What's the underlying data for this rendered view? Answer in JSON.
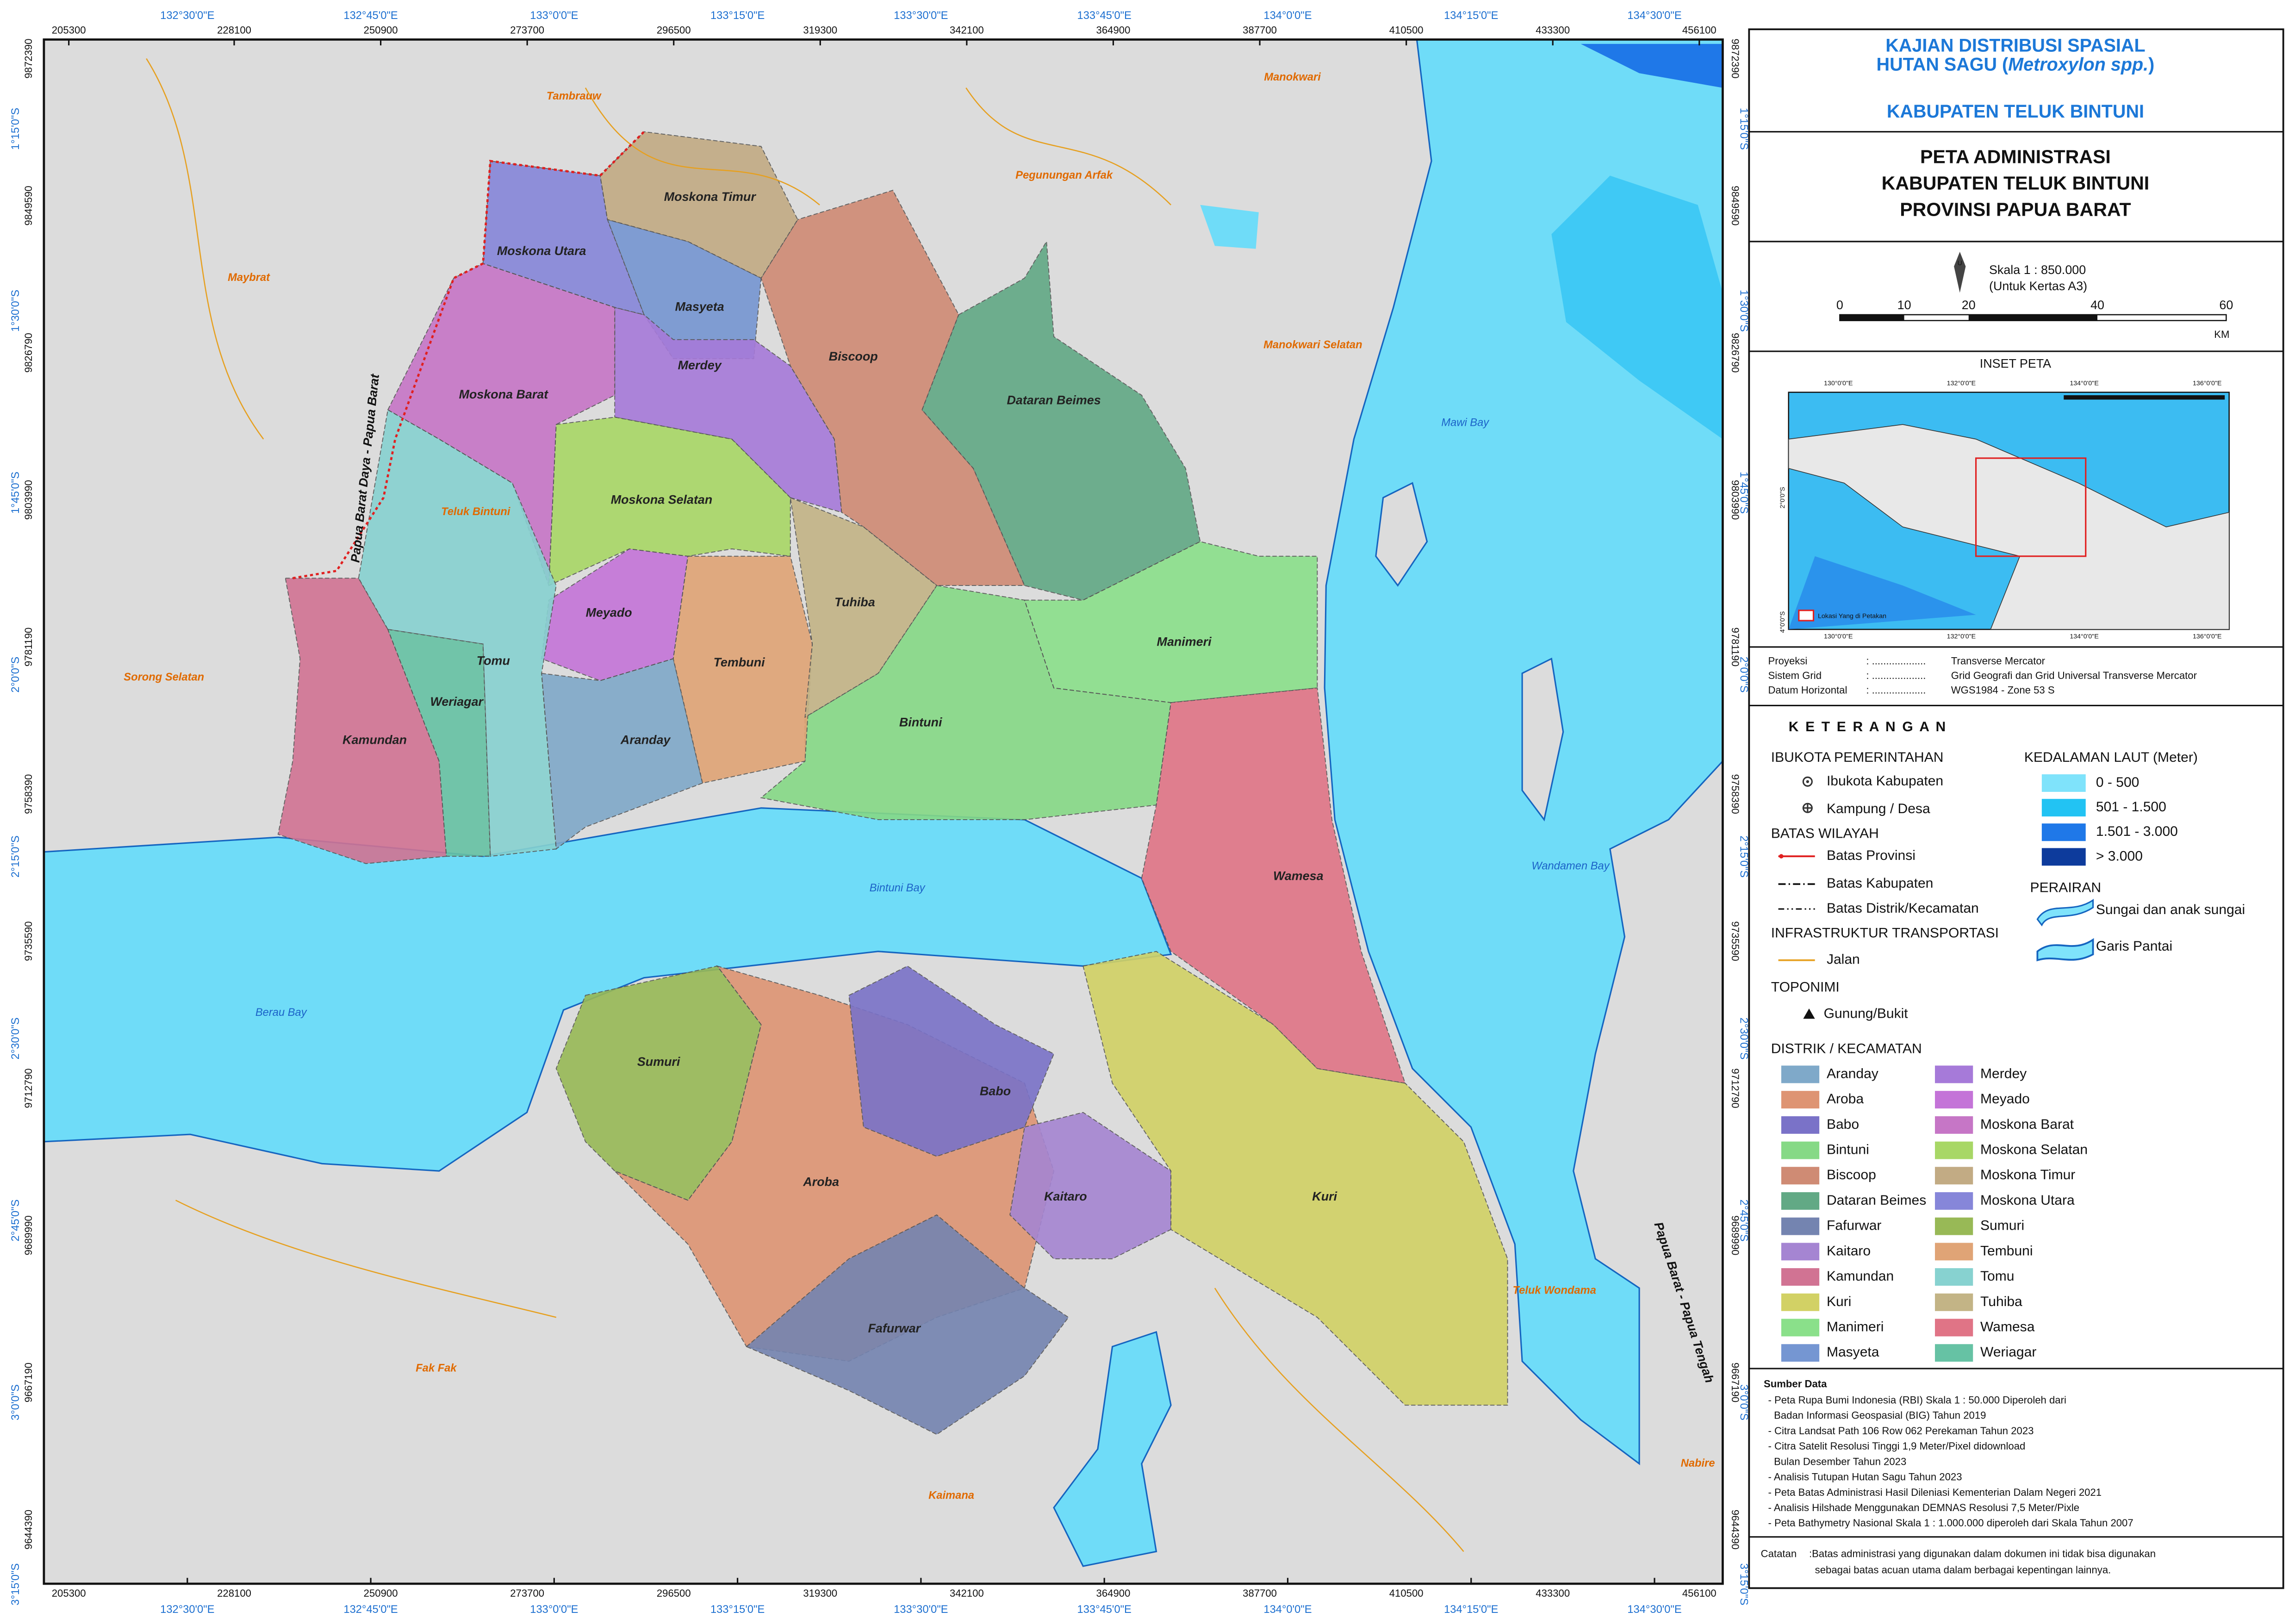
{
  "header": {
    "line1": "KAJIAN DISTRIBUSI SPASIAL",
    "line2_start": "HUTAN SAGU (",
    "line2_italic": "Metroxylon spp.",
    "line2_end": ")",
    "line3": "KABUPATEN TELUK BINTUNI"
  },
  "map_title": [
    "PETA ADMINISTRASI",
    "KABUPATEN TELUK BINTUNI",
    "PROVINSI PAPUA BARAT"
  ],
  "scale": {
    "north": "U",
    "label": "Skala 1 : 850.000",
    "paper": "(Untuk Kertas A3)",
    "ticks": [
      0,
      10,
      20,
      40,
      60
    ],
    "unit": "KM"
  },
  "inset": {
    "title": "INSET PETA",
    "lon_labels": [
      "130°0'0\"E",
      "132°0'0\"E",
      "134°0'0\"E",
      "136°0'0\"E"
    ],
    "lat_labels": [
      "2°0'0\"S",
      "4°0'0\"S"
    ],
    "legend": "Lokasi Yang di Petakan"
  },
  "projection": [
    {
      "key": "Proyeksi",
      "sep": ": ...................",
      "value": "Transverse Mercator"
    },
    {
      "key": "Sistem Grid",
      "sep": ": ...................",
      "value": "Grid Geografi dan Grid Universal Transverse Mercator"
    },
    {
      "key": "Datum Horizontal",
      "sep": ": ...................",
      "value": "WGS1984 - Zone 53 S"
    }
  ],
  "legend": {
    "title": "K E T E R A N G A N",
    "capital_heading": "IBUKOTA PEMERINTAHAN",
    "capital_regency": "Ibukota Kabupaten",
    "village": "Kampung / Desa",
    "boundary_heading": "BATAS WILAYAH",
    "province": "Batas Provinsi",
    "regency": "Batas Kabupaten",
    "district": "Batas Distrik/Kecamatan",
    "infra_heading": "INFRASTRUKTUR TRANSPORTASI",
    "road": "Jalan",
    "toponym_heading": "TOPONIMI",
    "mountain": "Gunung/Bukit",
    "district_heading": "DISTRIK / KECAMATAN",
    "depth_heading": "KEDALAMAN LAUT (Meter)",
    "depths": [
      {
        "label": "0 - 500",
        "color": "#7fe3fb"
      },
      {
        "label": "501 - 1.500",
        "color": "#22c3f3"
      },
      {
        "label": "1.501 - 3.000",
        "color": "#1f78e8"
      },
      {
        "label": "> 3.000",
        "color": "#0d3b9c"
      }
    ],
    "water_heading": "PERAIRAN",
    "river": "Sungai dan anak sungai",
    "coast": "Garis Pantai"
  },
  "districts": [
    {
      "name": "Aranday",
      "color": "#7fa9c9"
    },
    {
      "name": "Aroba",
      "color": "#de9473"
    },
    {
      "name": "Babo",
      "color": "#7a72c8"
    },
    {
      "name": "Bintuni",
      "color": "#86d986"
    },
    {
      "name": "Biscoop",
      "color": "#cf8b74"
    },
    {
      "name": "Dataran Beimes",
      "color": "#62a985"
    },
    {
      "name": "Fafurwar",
      "color": "#7484b0"
    },
    {
      "name": "Kaitaro",
      "color": "#a585d2"
    },
    {
      "name": "Kamundan",
      "color": "#d17393"
    },
    {
      "name": "Kuri",
      "color": "#d2d165"
    },
    {
      "name": "Manimeri",
      "color": "#8ae08a"
    },
    {
      "name": "Masyeta",
      "color": "#7596d2"
    },
    {
      "name": "Merdey",
      "color": "#a67ad9"
    },
    {
      "name": "Meyado",
      "color": "#c474d8"
    },
    {
      "name": "Moskona Barat",
      "color": "#c676c6"
    },
    {
      "name": "Moskona Selatan",
      "color": "#a8d766"
    },
    {
      "name": "Moskona Timur",
      "color": "#c2ab84"
    },
    {
      "name": "Moskona Utara",
      "color": "#8686d9"
    },
    {
      "name": "Sumuri",
      "color": "#98b956"
    },
    {
      "name": "Tembuni",
      "color": "#e0a476"
    },
    {
      "name": "Tomu",
      "color": "#87d2d0"
    },
    {
      "name": "Tuhiba",
      "color": "#c3b486"
    },
    {
      "name": "Wamesa",
      "color": "#e07486"
    },
    {
      "name": "Weriagar",
      "color": "#66c2a4"
    }
  ],
  "map": {
    "eastings": [
      205300,
      228100,
      250900,
      273700,
      296500,
      319300,
      342100,
      364900,
      387700,
      410500,
      433300,
      456100
    ],
    "lons": [
      "132°30'0\"E",
      "132°45'0\"E",
      "133°0'0\"E",
      "133°15'0\"E",
      "133°30'0\"E",
      "133°45'0\"E",
      "134°0'0\"E",
      "134°15'0\"E",
      "134°30'0\"E"
    ],
    "northings": [
      9872390,
      9849590,
      9826790,
      9803990,
      9781190,
      9758390,
      9735590,
      9712790,
      9689990,
      9667190,
      9644390
    ],
    "lats": [
      "1°15'0\"S",
      "1°30'0\"S",
      "1°45'0\"S",
      "2°0'0\"S",
      "2°15'0\"S",
      "2°30'0\"S",
      "2°45'0\"S",
      "3°0'0\"S",
      "3°15'0\"S"
    ],
    "regions": [
      "Tambrauw",
      "Maybrat",
      "Teluk Bintuni",
      "Sorong Selatan",
      "Manokwari",
      "Pegunungan Arfak",
      "Manokwari Selatan",
      "Teluk Wondama",
      "Fak Fak",
      "Kaimana",
      "Nabire"
    ],
    "waters": [
      "Mawi Bay",
      "Bintuni Bay",
      "Wandamen Bay",
      "Berau Bay"
    ],
    "boundaries": [
      "Papua Barat Daya - Papua Barat",
      "Papua Barat - Papua Tengah"
    ]
  },
  "sources": {
    "title": "Sumber Data",
    "lines": [
      "- Peta Rupa Bumi Indonesia (RBI) Skala 1 : 50.000 Diperoleh dari",
      "Badan Informasi Geospasial (BIG) Tahun 2019",
      "- Citra Landsat Path 106 Row 062 Perekaman Tahun 2023",
      "- Citra Satelit Resolusi Tinggi 1,9 Meter/Pixel didownload",
      "Bulan Desember Tahun 2023",
      "- Analisis Tutupan Hutan Sagu Tahun 2023",
      "- Peta Batas Administrasi Hasil Dileniasi Kementerian Dalam Negeri 2021",
      "- Analisis Hilshade Menggunakan DEMNAS Resolusi 7,5 Meter/Pixle",
      "- Peta Bathymetry Nasional Skala 1 : 1.000.000 diperoleh dari Skala Tahun 2007"
    ]
  },
  "note": {
    "label": "Catatan",
    "lines": [
      ":Batas administrasi yang digunakan dalam dokumen ini tidak bisa digunakan",
      "sebagai batas acuan utama dalam berbagai kepentingan lainnya."
    ]
  }
}
